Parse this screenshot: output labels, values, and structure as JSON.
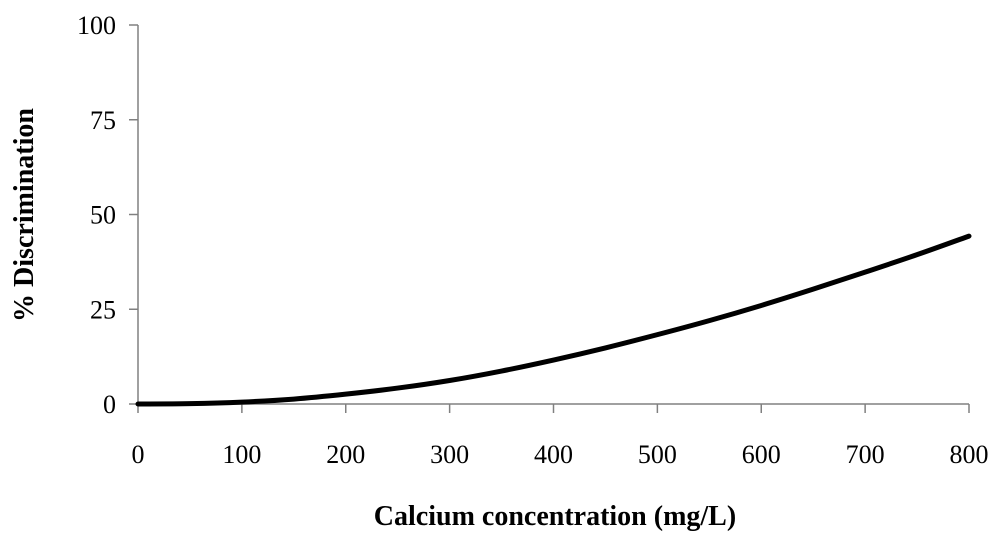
{
  "chart_data": {
    "type": "line",
    "title": "",
    "xlabel": "Calcium concentration (mg/L)",
    "ylabel": "% Discrimination",
    "xlim": [
      0,
      800
    ],
    "ylim": [
      0,
      100
    ],
    "xticks": [
      0,
      100,
      200,
      300,
      400,
      500,
      600,
      700,
      800
    ],
    "yticks": [
      0,
      25,
      50,
      75,
      100
    ],
    "grid": false,
    "legend": "none",
    "series": [
      {
        "color": "#000000",
        "x": [
          0,
          50,
          100,
          150,
          200,
          250,
          300,
          350,
          400,
          450,
          500,
          550,
          600,
          650,
          700,
          750,
          800
        ],
        "y": [
          0,
          0.1,
          0.5,
          1.3,
          2.6,
          4.2,
          6.2,
          8.7,
          11.6,
          14.8,
          18.3,
          22.0,
          26.0,
          30.3,
          34.8,
          39.4,
          44.3
        ]
      }
    ]
  }
}
